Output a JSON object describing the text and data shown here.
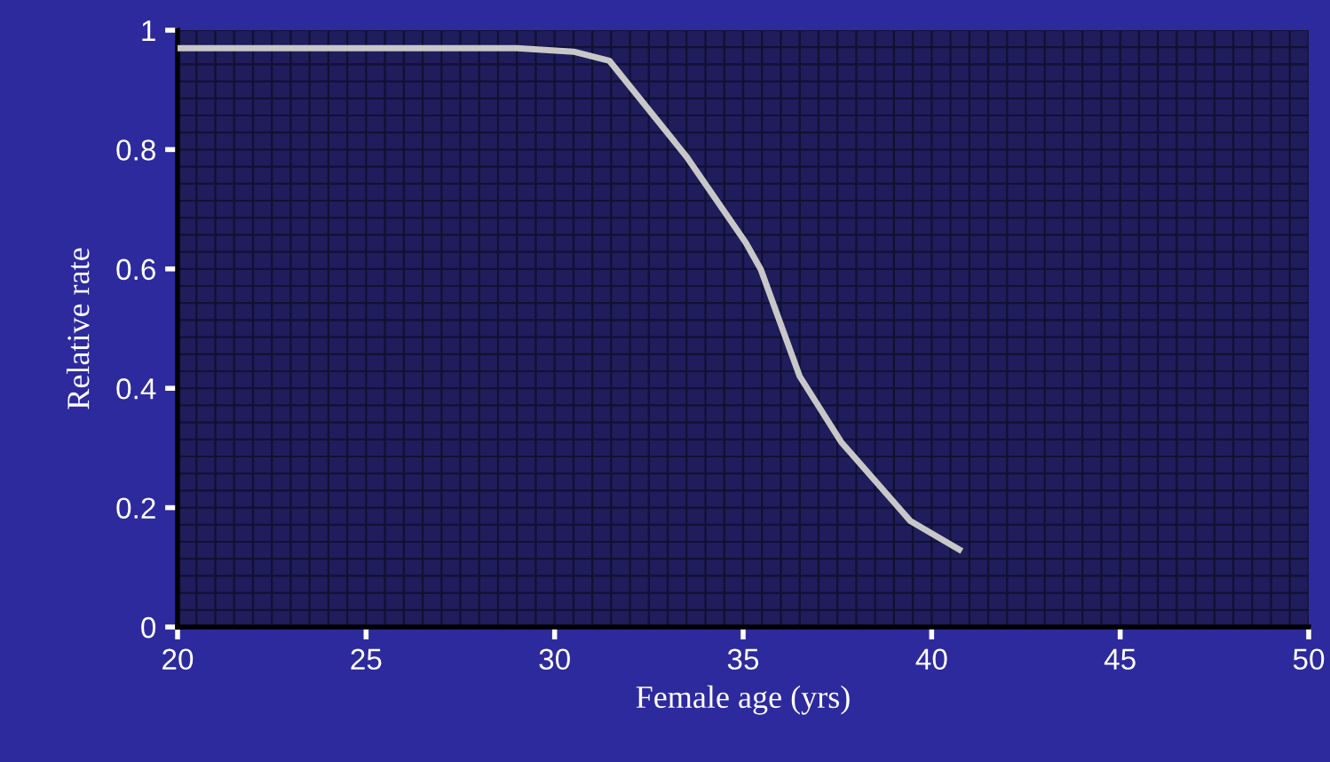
{
  "chart_data": {
    "type": "line",
    "xlabel": "Female age (yrs)",
    "ylabel": "Relative rate",
    "x": [
      20,
      29,
      30.5,
      31.45,
      33.5,
      35.07,
      35.47,
      36.5,
      37.6,
      39.43,
      40.73
    ],
    "series": [
      {
        "color": "#c8c8c8",
        "values": [
          0.97,
          0.97,
          0.964,
          0.949,
          0.788,
          0.644,
          0.599,
          0.42,
          0.31,
          0.178,
          0.13
        ]
      }
    ],
    "xlim": [
      20,
      50
    ],
    "xticks": [
      20,
      25,
      30,
      35,
      40,
      45,
      50
    ],
    "ylim": [
      0,
      1
    ],
    "yticks": [
      0,
      0.2,
      0.4,
      0.6,
      0.8,
      1
    ],
    "grid": true,
    "legend": false,
    "marker": "none",
    "line_style": "solid"
  }
}
